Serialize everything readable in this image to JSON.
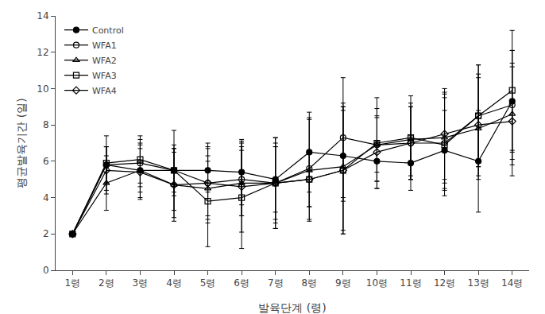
{
  "chart_data": {
    "type": "line",
    "xlabel": "발육단계 (령)",
    "ylabel": "평균발육기간 (일)",
    "x": [
      1,
      2,
      3,
      4,
      5,
      6,
      7,
      8,
      9,
      10,
      11,
      12,
      13,
      14
    ],
    "xlim": [
      0.5,
      14.5
    ],
    "xticks": [
      {
        "value": 1,
        "label": "1령"
      },
      {
        "value": 2,
        "label": "2령"
      },
      {
        "value": 3,
        "label": "3령"
      },
      {
        "value": 4,
        "label": "4령"
      },
      {
        "value": 5,
        "label": "5령"
      },
      {
        "value": 6,
        "label": "6령"
      },
      {
        "value": 7,
        "label": "7령"
      },
      {
        "value": 8,
        "label": "8령"
      },
      {
        "value": 9,
        "label": "9령"
      },
      {
        "value": 10,
        "label": "10령"
      },
      {
        "value": 11,
        "label": "11령"
      },
      {
        "value": 12,
        "label": "12령"
      },
      {
        "value": 13,
        "label": "13령"
      },
      {
        "value": 14,
        "label": "14령"
      }
    ],
    "ylim": [
      0,
      14
    ],
    "yticks": [
      0,
      2,
      4,
      6,
      8,
      10,
      12,
      14
    ],
    "grid": false,
    "legend": "upper left",
    "series": [
      {
        "name": "Control",
        "color": "black",
        "marker": "circle",
        "line_style": "solid",
        "values": [
          2.0,
          5.8,
          5.5,
          5.5,
          5.5,
          5.4,
          5.0,
          6.5,
          6.3,
          6.0,
          5.9,
          6.6,
          6.0,
          9.3
        ],
        "yerr": [
          0.0,
          1.0,
          1.2,
          1.2,
          1.2,
          1.8,
          1.8,
          2.2,
          2.5,
          1.1,
          1.5,
          2.2,
          2.8,
          2.8
        ]
      },
      {
        "name": "WFA1",
        "color": "black",
        "marker": "circle-open",
        "line_style": "solid",
        "values": [
          2.0,
          5.8,
          5.9,
          5.5,
          4.8,
          5.0,
          4.8,
          5.6,
          7.3,
          6.9,
          7.0,
          7.0,
          8.5,
          9.1
        ],
        "yerr": [
          0.0,
          1.0,
          1.3,
          1.4,
          2.2,
          2.0,
          2.2,
          2.8,
          3.3,
          1.5,
          2.0,
          2.5,
          2.8,
          3.0
        ]
      },
      {
        "name": "WFA2",
        "color": "black",
        "marker": "triangle-up-open",
        "line_style": "solid",
        "values": [
          2.0,
          4.8,
          5.5,
          4.7,
          4.5,
          4.8,
          4.8,
          5.5,
          5.7,
          6.9,
          7.2,
          7.3,
          7.8,
          8.6
        ],
        "yerr": [
          0.0,
          1.5,
          1.5,
          1.8,
          1.5,
          1.8,
          2.0,
          2.8,
          3.5,
          2.0,
          2.0,
          2.5,
          2.8,
          2.8
        ]
      },
      {
        "name": "WFA3",
        "color": "black",
        "marker": "square-open",
        "line_style": "solid",
        "values": [
          2.0,
          5.9,
          6.1,
          5.5,
          3.8,
          4.0,
          4.8,
          5.0,
          5.5,
          7.0,
          7.3,
          6.9,
          8.5,
          9.9
        ],
        "yerr": [
          0.0,
          1.5,
          1.3,
          2.2,
          2.5,
          2.8,
          2.5,
          1.5,
          3.5,
          2.5,
          2.3,
          2.8,
          2.8,
          3.3
        ]
      },
      {
        "name": "WFA4",
        "color": "black",
        "marker": "diamond-open",
        "line_style": "solid",
        "values": [
          2.0,
          5.5,
          5.4,
          4.7,
          4.8,
          4.6,
          4.8,
          5.0,
          5.5,
          6.5,
          7.0,
          7.5,
          8.0,
          8.2
        ],
        "yerr": [
          0.0,
          1.3,
          1.5,
          2.0,
          2.0,
          2.5,
          2.5,
          1.5,
          3.5,
          2.0,
          2.0,
          2.5,
          2.8,
          3.0
        ]
      }
    ]
  }
}
